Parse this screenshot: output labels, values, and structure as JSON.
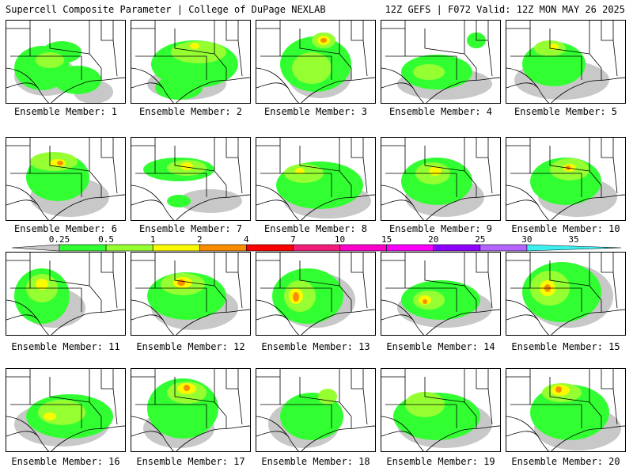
{
  "header": {
    "title_left": "Supercell Composite Parameter | College of DuPage NEXLAB",
    "title_right": "12Z GEFS | F072 Valid: 12Z MON MAY 26 2025"
  },
  "colorbar": {
    "ticks": [
      "0.25",
      "0.5",
      "1",
      "2",
      "4",
      "7",
      "10",
      "15",
      "20",
      "25",
      "30",
      "35"
    ],
    "colors": [
      "#c8c8c8",
      "#32ff32",
      "#96ff32",
      "#fafa00",
      "#fa8c00",
      "#fa0000",
      "#f01e78",
      "#fa00c8",
      "#fa00fa",
      "#8c00fa",
      "#b464ff",
      "#3cf0f0"
    ]
  },
  "panels": [
    {
      "label": "Ensemble Member: 1"
    },
    {
      "label": "Ensemble Member: 2"
    },
    {
      "label": "Ensemble Member: 3"
    },
    {
      "label": "Ensemble Member: 4"
    },
    {
      "label": "Ensemble Member: 5"
    },
    {
      "label": "Ensemble Member: 6"
    },
    {
      "label": "Ensemble Member: 7"
    },
    {
      "label": "Ensemble Member: 8"
    },
    {
      "label": "Ensemble Member: 9"
    },
    {
      "label": "Ensemble Member: 10"
    },
    {
      "label": "Ensemble Member: 11"
    },
    {
      "label": "Ensemble Member: 12"
    },
    {
      "label": "Ensemble Member: 13"
    },
    {
      "label": "Ensemble Member: 14"
    },
    {
      "label": "Ensemble Member: 15"
    },
    {
      "label": "Ensemble Member: 16"
    },
    {
      "label": "Ensemble Member: 17"
    },
    {
      "label": "Ensemble Member: 18"
    },
    {
      "label": "Ensemble Member: 19"
    },
    {
      "label": "Ensemble Member: 20"
    }
  ]
}
